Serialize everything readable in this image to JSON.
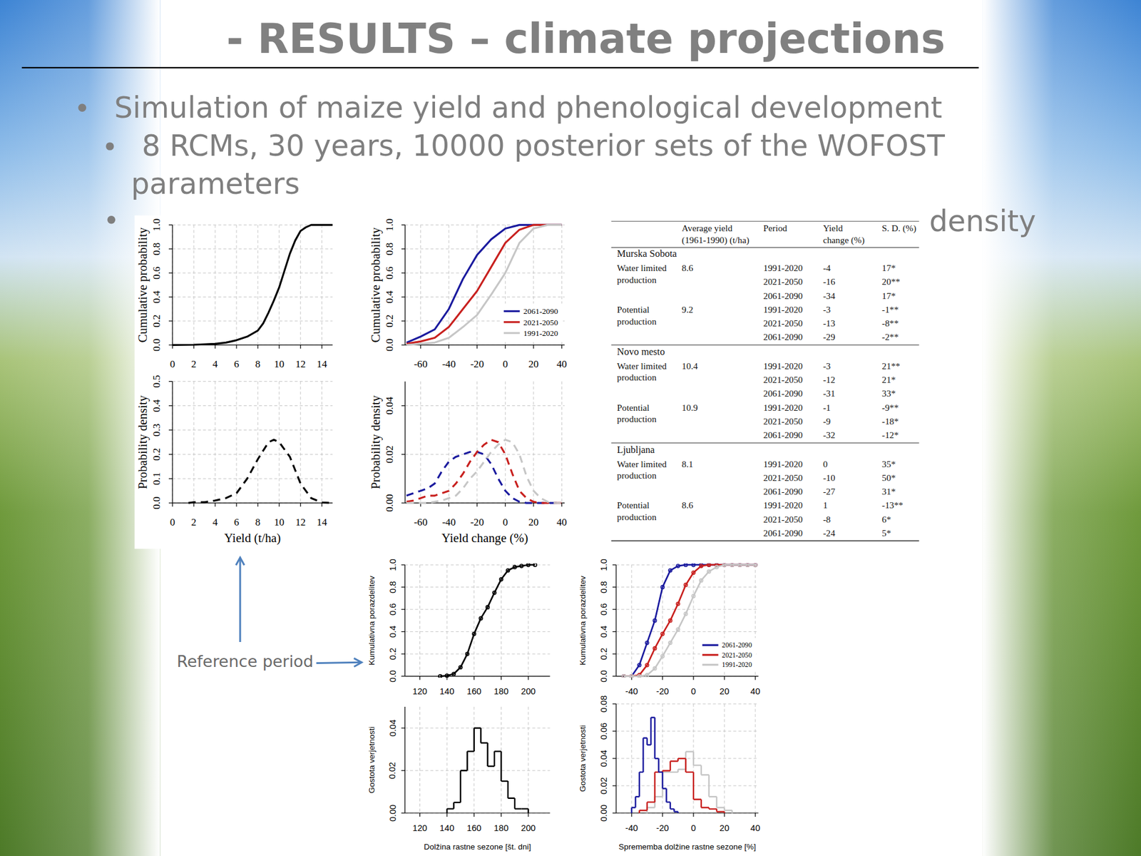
{
  "title": "- RESULTS – climate projections",
  "bullets": [
    {
      "text": "Simulation of maize yield and phenological development",
      "items": [
        "8 RCMs, 30 years, 10000 posterior sets of the WOFOST parameters"
      ]
    },
    {
      "text": "density"
    }
  ],
  "annotation": "Reference period",
  "table": {
    "columns": [
      "Average yield (1961-1990) (t/ha)",
      "Period",
      "Yield change (%)",
      "S. D. (%)"
    ],
    "groups": [
      {
        "location": "Murska Sobota",
        "rows": [
          {
            "production": "Water limited production",
            "average_yield": "8.6",
            "periods": [
              {
                "period": "1991-2020",
                "yield_change": "-4",
                "sd": "17*"
              },
              {
                "period": "2021-2050",
                "yield_change": "-16",
                "sd": "20**"
              },
              {
                "period": "2061-2090",
                "yield_change": "-34",
                "sd": "17*"
              }
            ]
          },
          {
            "production": "Potential production",
            "average_yield": "9.2",
            "periods": [
              {
                "period": "1991-2020",
                "yield_change": "-3",
                "sd": "-1**"
              },
              {
                "period": "2021-2050",
                "yield_change": "-13",
                "sd": "-8**"
              },
              {
                "period": "2061-2090",
                "yield_change": "-29",
                "sd": "-2**"
              }
            ]
          }
        ]
      },
      {
        "location": "Novo mesto",
        "rows": [
          {
            "production": "Water limited production",
            "average_yield": "10.4",
            "periods": [
              {
                "period": "1991-2020",
                "yield_change": "-3",
                "sd": "21**"
              },
              {
                "period": "2021-2050",
                "yield_change": "-12",
                "sd": "21*"
              },
              {
                "period": "2061-2090",
                "yield_change": "-31",
                "sd": "33*"
              }
            ]
          },
          {
            "production": "Potential production",
            "average_yield": "10.9",
            "periods": [
              {
                "period": "1991-2020",
                "yield_change": "-1",
                "sd": "-9**"
              },
              {
                "period": "2021-2050",
                "yield_change": "-9",
                "sd": "-18*"
              },
              {
                "period": "2061-2090",
                "yield_change": "-32",
                "sd": "-12*"
              }
            ]
          }
        ]
      },
      {
        "location": "Ljubljana",
        "rows": [
          {
            "production": "Water limited production",
            "average_yield": "8.1",
            "periods": [
              {
                "period": "1991-2020",
                "yield_change": "0",
                "sd": "35*"
              },
              {
                "period": "2021-2050",
                "yield_change": "-10",
                "sd": "50*"
              },
              {
                "period": "2061-2090",
                "yield_change": "-27",
                "sd": "31*"
              }
            ]
          },
          {
            "production": "Potential production",
            "average_yield": "8.6",
            "periods": [
              {
                "period": "1991-2020",
                "yield_change": "1",
                "sd": "-13**"
              },
              {
                "period": "2021-2050",
                "yield_change": "-8",
                "sd": "6*"
              },
              {
                "period": "2061-2090",
                "yield_change": "-24",
                "sd": "5*"
              }
            ]
          }
        ]
      }
    ]
  },
  "chart_data": [
    {
      "type": "line",
      "y_label": "Cumulative probability",
      "x": [
        0,
        2,
        4,
        5,
        6,
        7,
        8,
        8.5,
        9,
        9.5,
        10,
        10.5,
        11,
        11.5,
        12,
        12.5,
        13,
        14,
        15
      ],
      "series": [
        {
          "color": "#000000",
          "values": [
            0,
            0.002,
            0.01,
            0.02,
            0.04,
            0.07,
            0.12,
            0.18,
            0.27,
            0.37,
            0.48,
            0.62,
            0.76,
            0.87,
            0.95,
            0.98,
            1,
            1,
            1
          ]
        }
      ],
      "line_style": "solid",
      "xlim": [
        0,
        15
      ],
      "ylim": [
        0,
        1
      ],
      "xticks": [
        0,
        2,
        4,
        6,
        8,
        10,
        12,
        14
      ],
      "yticks": [
        {
          "value": 0,
          "label": "0.0"
        },
        0.2,
        0.4,
        0.6,
        0.8,
        {
          "value": 1,
          "label": "1.0"
        }
      ],
      "grid": true
    },
    {
      "type": "line",
      "y_label": "Cumulative probability",
      "x": [
        -70,
        -60,
        -50,
        -40,
        -30,
        -20,
        -10,
        0,
        10,
        20,
        30,
        40
      ],
      "series": [
        {
          "name": "2061-2090",
          "color": "#1a1a9e",
          "values": [
            0.02,
            0.07,
            0.13,
            0.3,
            0.55,
            0.75,
            0.88,
            0.97,
            1,
            1,
            1,
            1
          ]
        },
        {
          "name": "2021-2050",
          "color": "#c8201e",
          "values": [
            0.01,
            0.03,
            0.06,
            0.15,
            0.3,
            0.45,
            0.65,
            0.85,
            0.96,
            1,
            1,
            1
          ]
        },
        {
          "name": "1991-2020",
          "color": "#c6c6c6",
          "values": [
            0,
            0.01,
            0.02,
            0.06,
            0.15,
            0.25,
            0.42,
            0.6,
            0.85,
            0.97,
            1,
            1
          ]
        }
      ],
      "line_style": "solid",
      "xlim": [
        -71,
        42
      ],
      "ylim": [
        0,
        1
      ],
      "xticks": [
        -60,
        -40,
        -20,
        0,
        20,
        40
      ],
      "yticks": [
        {
          "value": 0,
          "label": "0.0"
        },
        0.2,
        0.4,
        0.6,
        0.8,
        {
          "value": 1,
          "label": "1.0"
        }
      ],
      "grid": true,
      "legend": "lower right"
    },
    {
      "type": "line",
      "x_label": "Yield (t/ha)",
      "y_label": "Probability density",
      "x": [
        1.5,
        2,
        3,
        4,
        5,
        6,
        7,
        8,
        9,
        9.5,
        10,
        11,
        12,
        13,
        14,
        15
      ],
      "series": [
        {
          "color": "#000000",
          "values": [
            0,
            0.003,
            0.003,
            0.01,
            0.02,
            0.04,
            0.1,
            0.18,
            0.25,
            0.26,
            0.25,
            0.19,
            0.08,
            0.02,
            0.002,
            0
          ]
        }
      ],
      "line_style": "dashed",
      "xlim": [
        0,
        15
      ],
      "ylim": [
        0,
        0.5
      ],
      "xticks": [
        0,
        2,
        4,
        6,
        8,
        10,
        12,
        14
      ],
      "yticks": [
        {
          "value": 0,
          "label": "0.0"
        },
        0.1,
        0.2,
        0.3,
        0.4,
        0.5
      ],
      "grid": true
    },
    {
      "type": "line",
      "x_label": "Yield change (%)",
      "y_label": "Probability density",
      "x": [
        -70,
        -65,
        -60,
        -55,
        -50,
        -45,
        -40,
        -35,
        -30,
        -25,
        -20,
        -15,
        -10,
        -5,
        0,
        5,
        10,
        15,
        20,
        25,
        30,
        35,
        40
      ],
      "series": [
        {
          "color": "#1a1a9e",
          "values": [
            0.003,
            0.004,
            0.005,
            0.006,
            0.008,
            0.013,
            0.017,
            0.019,
            0.02,
            0.021,
            0.021,
            0.02,
            0.016,
            0.01,
            0.005,
            0.002,
            0.0005,
            0,
            0,
            0,
            0,
            0,
            0
          ]
        },
        {
          "color": "#c8201e",
          "values": [
            0.0005,
            0.001,
            0.002,
            0.003,
            0.003,
            0.004,
            0.005,
            0.008,
            0.012,
            0.017,
            0.021,
            0.024,
            0.026,
            0.025,
            0.02,
            0.012,
            0.005,
            0.002,
            0.0005,
            0,
            0,
            0,
            0
          ]
        },
        {
          "color": "#c6c6c6",
          "values": [
            0,
            0,
            0,
            0,
            0.0005,
            0.001,
            0.002,
            0.003,
            0.006,
            0.01,
            0.013,
            0.017,
            0.021,
            0.024,
            0.026,
            0.025,
            0.02,
            0.011,
            0.005,
            0.002,
            0.0005,
            0,
            0
          ]
        }
      ],
      "line_style": "dashed",
      "xlim": [
        -71,
        42
      ],
      "ylim": [
        0,
        0.05
      ],
      "xticks": [
        -60,
        -40,
        -20,
        0,
        20,
        40
      ],
      "yticks": [
        {
          "value": 0,
          "label": "0.00"
        },
        0.02,
        0.04
      ],
      "grid": true
    },
    {
      "type": "line",
      "y_label": "Kumulativna porazdelitev",
      "x": [
        135,
        140,
        145,
        150,
        155,
        160,
        165,
        170,
        175,
        180,
        185,
        190,
        195,
        200,
        205
      ],
      "series": [
        {
          "color": "#000000",
          "values": [
            0,
            0.005,
            0.02,
            0.08,
            0.2,
            0.38,
            0.52,
            0.62,
            0.75,
            0.87,
            0.95,
            0.98,
            0.99,
            1,
            1
          ]
        }
      ],
      "line_style": "solid",
      "marker": "circle",
      "xlim": [
        109,
        216
      ],
      "ylim": [
        0,
        1
      ],
      "xticks": [
        120,
        140,
        160,
        180,
        200
      ],
      "yticks": [
        {
          "value": 0,
          "label": "0.0"
        },
        0.2,
        0.4,
        0.6,
        0.8,
        {
          "value": 1,
          "label": "1.0"
        }
      ],
      "grid": true
    },
    {
      "type": "histogram",
      "x_label": "Dolžina rastne sezone [št. dni]",
      "y_label": "Gostota verjetnosti",
      "series": [
        {
          "color": "#000000",
          "bins": [
            140,
            145,
            150,
            155,
            160,
            165,
            170,
            175,
            180,
            185,
            190,
            195,
            200
          ],
          "values": [
            0.002,
            0.005,
            0.02,
            0.029,
            0.04,
            0.033,
            0.022,
            0.029,
            0.015,
            0.007,
            0.002,
            0.002
          ]
        }
      ],
      "xlim": [
        109,
        216
      ],
      "ylim": [
        0,
        0.05
      ],
      "xticks": [
        120,
        140,
        160,
        180,
        200
      ],
      "yticks": [
        {
          "value": 0,
          "label": "0.00"
        },
        0.02,
        0.04
      ],
      "grid": true
    },
    {
      "type": "line",
      "y_label": "Kumulativna porazdelitev",
      "x": [
        -45,
        -40,
        -35,
        -30,
        -25,
        -20,
        -15,
        -10,
        -5,
        0,
        5,
        10,
        15,
        20,
        25,
        30,
        35,
        40
      ],
      "series": [
        {
          "name": "2061-2090",
          "color": "#1a1a9e",
          "values": [
            0,
            0,
            0.1,
            0.3,
            0.5,
            0.8,
            0.95,
            0.99,
            1,
            1,
            1,
            1,
            1,
            1,
            1,
            1,
            1,
            1
          ]
        },
        {
          "name": "2021-2050",
          "color": "#c8201e",
          "values": [
            0,
            0,
            0.01,
            0.1,
            0.25,
            0.38,
            0.5,
            0.65,
            0.82,
            0.93,
            0.99,
            1,
            1,
            1,
            1,
            1,
            1,
            1
          ]
        },
        {
          "name": "1991-2020",
          "color": "#c6c6c6",
          "values": [
            0,
            0,
            0,
            0.01,
            0.07,
            0.18,
            0.3,
            0.42,
            0.56,
            0.72,
            0.86,
            0.94,
            0.98,
            1,
            1,
            1,
            1,
            1
          ]
        }
      ],
      "line_style": "solid",
      "marker": "circle",
      "xlim": [
        -50,
        42
      ],
      "ylim": [
        0,
        1
      ],
      "xticks": [
        -40,
        -20,
        0,
        20,
        40
      ],
      "yticks": [
        {
          "value": 0,
          "label": "0.0"
        },
        0.2,
        0.4,
        0.6,
        0.8,
        {
          "value": 1,
          "label": "1.0"
        }
      ],
      "grid": true,
      "legend": "lower right"
    },
    {
      "type": "histogram",
      "x_label": "Sprememba dolžine rastne sezone [%]",
      "y_label": "Gostota verjetnosti",
      "series": [
        {
          "color": "#c6c6c6",
          "bins": [
            -30,
            -25,
            -20,
            -15,
            -10,
            -5,
            0,
            5,
            10,
            15,
            20,
            25
          ],
          "values": [
            0.004,
            0.012,
            0.03,
            0.03,
            0.032,
            0.045,
            0.035,
            0.028,
            0.012,
            0.004,
            0.002
          ]
        },
        {
          "color": "#c8201e",
          "bins": [
            -35,
            -30,
            -25,
            -20,
            -15,
            -10,
            -5,
            0,
            5,
            10,
            15,
            20
          ],
          "values": [
            0.002,
            0.008,
            0.03,
            0.031,
            0.038,
            0.04,
            0.03,
            0.01,
            0.004,
            0.003,
            0.001
          ]
        },
        {
          "color": "#1a1a9e",
          "bins": [
            -40,
            -37.5,
            -35,
            -32.5,
            -30,
            -27.5,
            -25,
            -22.5,
            -20,
            -17.5,
            -15,
            -12.5,
            -10
          ],
          "values": [
            0.004,
            0.012,
            0.03,
            0.055,
            0.05,
            0.07,
            0.04,
            0.03,
            0.018,
            0.008,
            0.003,
            0.001
          ]
        }
      ],
      "xlim": [
        -50,
        42
      ],
      "ylim": [
        0,
        0.08
      ],
      "xticks": [
        -40,
        -20,
        0,
        20,
        40
      ],
      "yticks": [
        {
          "value": 0,
          "label": "0.00"
        },
        0.02,
        0.04,
        0.06,
        0.08
      ],
      "grid": true
    }
  ]
}
